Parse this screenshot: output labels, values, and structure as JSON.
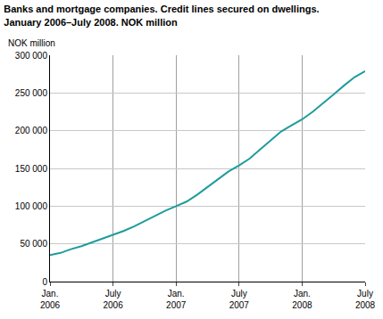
{
  "chart_data": {
    "type": "line",
    "title": "Banks and mortgage companies. Credit lines secured on dwellings.\nJanuary 2006–July 2008. NOK million",
    "y_label": "NOK million",
    "categories": [
      "Jan.\n2006",
      null,
      null,
      null,
      null,
      null,
      "July\n2006",
      null,
      null,
      null,
      null,
      null,
      "Jan.\n2007",
      null,
      null,
      null,
      null,
      null,
      "July\n2007",
      null,
      null,
      null,
      null,
      null,
      "Jan.\n2008",
      null,
      null,
      null,
      null,
      null,
      "July\n2008"
    ],
    "values": [
      35000,
      38000,
      43000,
      47000,
      52000,
      57000,
      62000,
      67000,
      73000,
      80000,
      87000,
      94000,
      100000,
      106000,
      115000,
      125000,
      135000,
      146000,
      154000,
      163000,
      175000,
      187000,
      199000,
      207000,
      215000,
      225000,
      236000,
      248000,
      260000,
      271000,
      279000
    ],
    "color": "#1f9c9c",
    "ylim": [
      0,
      300000
    ],
    "yticks": [
      0,
      {
        "value": 50000,
        "label": "50 000"
      },
      {
        "value": 100000,
        "label": "100 000"
      },
      {
        "value": 150000,
        "label": "150 000"
      },
      {
        "value": 200000,
        "label": "200 000"
      },
      {
        "value": 250000,
        "label": "250 000"
      },
      {
        "value": 300000,
        "label": "300 000"
      }
    ],
    "grid": true
  }
}
